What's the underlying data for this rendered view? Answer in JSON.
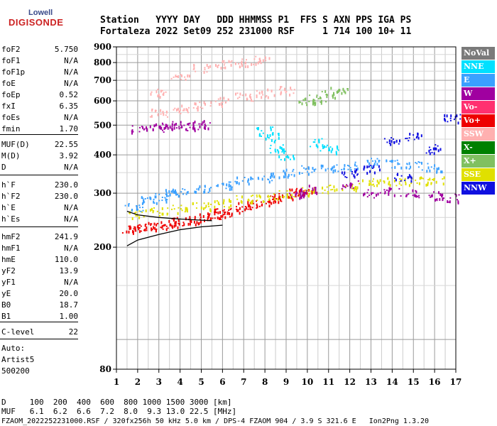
{
  "logo": {
    "brand": "Lowell",
    "product": "DIGISONDE"
  },
  "header": {
    "line1": "Station   YYYY DAY   DDD HHMMSS P1  FFS S AXN PPS IGA PS",
    "line2": "Fortaleza 2022 Set09 252 231000 RSF     1 714 100 10+ 11"
  },
  "params": [
    {
      "k": "foF2",
      "v": "5.750"
    },
    {
      "k": "foF1",
      "v": "N/A"
    },
    {
      "k": "foF1p",
      "v": "N/A"
    },
    {
      "k": "foE",
      "v": "N/A"
    },
    {
      "k": "foEp",
      "v": "0.52"
    },
    {
      "k": "fxI",
      "v": "6.35"
    },
    {
      "k": "foEs",
      "v": "N/A"
    },
    {
      "k": "fmin",
      "v": "1.70"
    },
    {
      "k": "MUF(D)",
      "v": "22.55"
    },
    {
      "k": "M(D)",
      "v": "3.92"
    },
    {
      "k": "D",
      "v": "N/A"
    },
    {
      "k": "h`F",
      "v": "230.0"
    },
    {
      "k": "h`F2",
      "v": "230.0"
    },
    {
      "k": "h`E",
      "v": "N/A"
    },
    {
      "k": "h`Es",
      "v": "N/A"
    },
    {
      "k": "hmF2",
      "v": "241.9"
    },
    {
      "k": "hmF1",
      "v": "N/A"
    },
    {
      "k": "hmE",
      "v": "110.0"
    },
    {
      "k": "yF2",
      "v": "13.9"
    },
    {
      "k": "yF1",
      "v": "N/A"
    },
    {
      "k": "yE",
      "v": "20.0"
    },
    {
      "k": "B0",
      "v": "18.7"
    },
    {
      "k": "B1",
      "v": "1.00"
    },
    {
      "k": "C-level",
      "v": "22"
    }
  ],
  "auto": {
    "l1": "Auto:",
    "l2": "Artist5",
    "l3": "500200"
  },
  "footer": {
    "d_line": "D     100  200  400  600  800 1000 1500 3000 [km]",
    "muf_line": "MUF   6.1  6.2  6.6  7.2  8.0  9.3 13.0 22.5 [MHz]",
    "file_line": "FZAOM_2022252231000.RSF / 320fx256h 50 kHz 5.0 km / DPS-4 FZAOM 904 / 3.9 S 321.6 E   Ion2Png 1.3.20"
  },
  "legend": [
    {
      "label": "NoVal",
      "color": "#7a7a7a"
    },
    {
      "label": "NNE",
      "color": "#00e0ff"
    },
    {
      "label": "E",
      "color": "#3aa0ff"
    },
    {
      "label": "W",
      "color": "#a000a0"
    },
    {
      "label": "Vo-",
      "color": "#ff3070"
    },
    {
      "label": "Vo+",
      "color": "#ee0000"
    },
    {
      "label": "SSW",
      "color": "#ffb0b0"
    },
    {
      "label": "X-",
      "color": "#008000"
    },
    {
      "label": "X+",
      "color": "#80c060"
    },
    {
      "label": "SSE",
      "color": "#e0e000"
    },
    {
      "label": "NNW",
      "color": "#1010e0"
    }
  ],
  "chart_data": {
    "type": "scatter",
    "title": "",
    "xlabel": "",
    "ylabel": "",
    "xlim": [
      1,
      17
    ],
    "ylim": [
      80,
      900
    ],
    "y_scale": "log",
    "grid": true,
    "legend_position": "right",
    "xticks": [
      1,
      2,
      3,
      4,
      5,
      6,
      7,
      8,
      9,
      10,
      11,
      12,
      13,
      14,
      15,
      16,
      17
    ],
    "yticks": [
      80,
      200,
      300,
      400,
      500,
      600,
      700,
      800,
      900
    ],
    "series": [
      {
        "name": "Vo+",
        "points": [
          [
            1.7,
            230
          ],
          [
            2,
            232
          ],
          [
            2.5,
            234
          ],
          [
            3,
            236
          ],
          [
            3.5,
            240
          ],
          [
            4,
            243
          ],
          [
            4.5,
            246
          ],
          [
            5,
            250
          ],
          [
            5.5,
            255
          ],
          [
            6,
            260
          ],
          [
            6.5,
            266
          ],
          [
            7,
            272
          ],
          [
            7.5,
            278
          ],
          [
            8,
            284
          ],
          [
            8.5,
            290
          ],
          [
            9,
            296
          ],
          [
            9.5,
            302
          ],
          [
            10,
            308
          ]
        ]
      },
      {
        "name": "SSE",
        "points": [
          [
            2,
            258
          ],
          [
            3,
            262
          ],
          [
            4,
            268
          ],
          [
            5,
            272
          ],
          [
            6,
            280
          ],
          [
            7,
            288
          ],
          [
            8,
            292
          ],
          [
            9,
            298
          ],
          [
            10,
            305
          ],
          [
            11,
            310
          ],
          [
            12,
            318
          ],
          [
            13,
            325
          ],
          [
            14,
            328
          ],
          [
            15,
            330
          ],
          [
            16,
            332
          ]
        ]
      },
      {
        "name": "E",
        "points": [
          [
            1.8,
            270
          ],
          [
            2.5,
            285
          ],
          [
            3,
            292
          ],
          [
            3.5,
            300
          ],
          [
            4,
            305
          ],
          [
            5,
            312
          ],
          [
            6,
            320
          ],
          [
            7,
            330
          ],
          [
            8,
            340
          ],
          [
            9,
            350
          ],
          [
            10,
            360
          ],
          [
            11,
            365
          ],
          [
            12,
            370
          ],
          [
            13,
            380
          ],
          [
            14,
            375
          ],
          [
            15,
            370
          ],
          [
            16,
            365
          ]
        ]
      },
      {
        "name": "W",
        "points": [
          [
            2,
            485
          ],
          [
            3,
            492
          ],
          [
            3.5,
            495
          ],
          [
            4,
            500
          ],
          [
            4.5,
            498
          ],
          [
            5,
            505
          ],
          [
            9.5,
            300
          ],
          [
            10,
            310
          ],
          [
            12,
            320
          ],
          [
            13,
            300
          ],
          [
            14,
            305
          ],
          [
            15,
            300
          ],
          [
            16,
            295
          ],
          [
            16.7,
            290
          ]
        ]
      },
      {
        "name": "SSW",
        "points": [
          [
            3,
            550
          ],
          [
            4,
            565
          ],
          [
            5,
            580
          ],
          [
            6,
            600
          ],
          [
            7,
            620
          ],
          [
            8,
            640
          ],
          [
            9,
            650
          ],
          [
            3,
            640
          ],
          [
            4,
            720
          ],
          [
            5,
            770
          ],
          [
            6,
            790
          ],
          [
            7,
            800
          ],
          [
            7.8,
            815
          ]
        ]
      },
      {
        "name": "NNE",
        "points": [
          [
            8,
            480
          ],
          [
            8.2,
            460
          ],
          [
            8.5,
            420
          ],
          [
            9,
            400
          ],
          [
            10.5,
            440
          ],
          [
            11,
            420
          ]
        ]
      },
      {
        "name": "NNW",
        "points": [
          [
            12,
            350
          ],
          [
            13,
            360
          ],
          [
            14,
            450
          ],
          [
            14.5,
            340
          ],
          [
            15,
            460
          ],
          [
            16,
            420
          ],
          [
            16.8,
            530
          ]
        ]
      },
      {
        "name": "X+",
        "points": [
          [
            10,
            600
          ],
          [
            10.5,
            610
          ],
          [
            11,
            630
          ],
          [
            11.5,
            650
          ]
        ]
      }
    ]
  }
}
